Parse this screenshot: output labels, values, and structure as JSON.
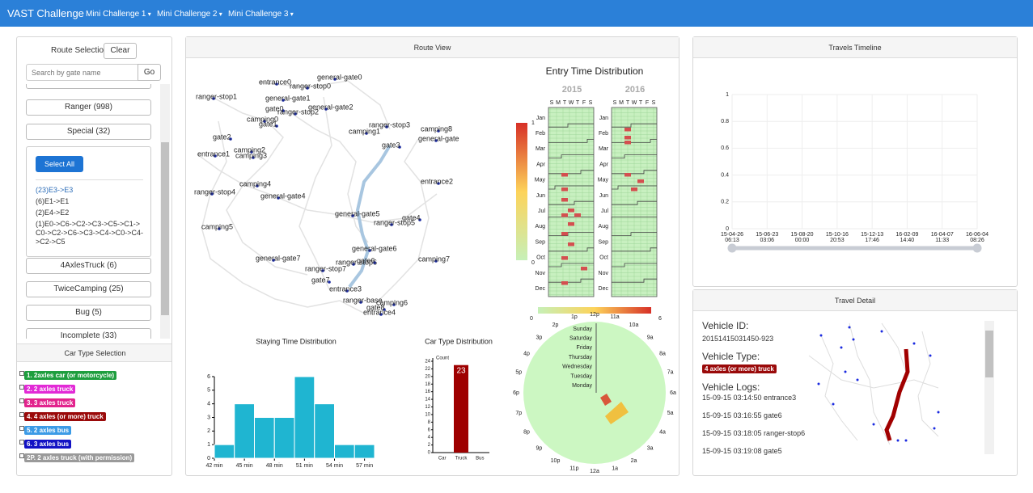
{
  "nav": {
    "brand": "VAST Challenge",
    "menus": [
      "Mini Challenge 1",
      "Mini Challenge 2",
      "Mini Challenge 3"
    ]
  },
  "route_selection": {
    "title": "Route Selection",
    "clear": "Clear",
    "search_placeholder": "Search by gate name",
    "go": "Go",
    "groups_before": [
      "Ranger (998)",
      "Special (32)"
    ],
    "select_all": "Select All",
    "routes": [
      "(23)E3->E3",
      "(6)E1->E1",
      "(2)E4->E2",
      "(1)E0->C6->C2->C3->C5->C1->C0->C2->C6->C3->C4->C0->C4->C2->C5"
    ],
    "groups_after": [
      "4AxlesTruck (6)",
      "TwiceCamping (25)",
      "Bug (5)",
      "Incomplete (33)"
    ]
  },
  "car_type_selection": {
    "title": "Car Type Selection",
    "items": [
      {
        "label": "1. 2axles car (or motorcycle)",
        "color": "#1e9e3e"
      },
      {
        "label": "2. 2 axles truck",
        "color": "#e229d6"
      },
      {
        "label": "3. 3 axles truck",
        "color": "#e2238d"
      },
      {
        "label": "4. 4 axles (or more) truck",
        "color": "#9a0a0a"
      },
      {
        "label": "5. 2 axles bus",
        "color": "#3c9be6"
      },
      {
        "label": "6. 3 axles bus",
        "color": "#1212c4"
      },
      {
        "label": "2P. 2 axles truck (with permission)",
        "color": "#9a9a9a"
      }
    ]
  },
  "route_view": {
    "title": "Route View",
    "gates": [
      "entrance0",
      "ranger-stop0",
      "general-gate0",
      "ranger-stop1",
      "general-gate1",
      "gate0",
      "ranger-stop2",
      "general-gate2",
      "camping0",
      "gate1",
      "camping1",
      "ranger-stop3",
      "camping8",
      "general-gate",
      "gate2",
      "gate3",
      "camping2",
      "entrance1",
      "camping3",
      "camping4",
      "entrance2",
      "ranger-stop4",
      "general-gate4",
      "general-gate5",
      "gate4",
      "ranger-stop5",
      "camping5",
      "general-gate6",
      "general-gate7",
      "camping7",
      "ranger-stop6",
      "gate6",
      "ranger-stop7",
      "gate7",
      "entrance3",
      "ranger-base",
      "camping6",
      "gate8",
      "entrance4"
    ]
  },
  "entry_time": {
    "title": "Entry Time Distribution",
    "years": [
      "2015",
      "2016"
    ],
    "weekdays": [
      "S",
      "M",
      "T",
      "W",
      "T",
      "F",
      "S"
    ],
    "months": [
      "Jan",
      "Feb",
      "Mar",
      "Apr",
      "May",
      "Jun",
      "Jul",
      "Aug",
      "Sep",
      "Oct",
      "Nov",
      "Dec"
    ],
    "scale": [
      1,
      0
    ]
  },
  "hour_radial": {
    "hours": [
      "12a",
      "1a",
      "2a",
      "3a",
      "4a",
      "5a",
      "6a",
      "7a",
      "8a",
      "9a",
      "10a",
      "11a",
      "12p",
      "1p",
      "2p",
      "3p",
      "4p",
      "5p",
      "6p",
      "7p",
      "8p",
      "9p",
      "10p",
      "11p"
    ],
    "weekdays": [
      "Sunday",
      "Saturday",
      "Friday",
      "Thursday",
      "Wednesday",
      "Tuesday",
      "Monday"
    ],
    "scale": [
      0,
      6
    ]
  },
  "staying_time": {
    "type": "histogram",
    "title": "Staying Time Distribution",
    "bins": [
      42,
      44,
      46,
      48,
      50,
      52,
      54,
      56,
      58
    ],
    "values": [
      1,
      4,
      3,
      3,
      6,
      4,
      1,
      1
    ],
    "color": "#1fb5d1",
    "xlim": [
      42,
      58
    ],
    "xticks": [
      {
        "value": 42,
        "label": "42 min"
      },
      {
        "value": 45,
        "label": "45 min"
      },
      {
        "value": 48,
        "label": "48 min"
      },
      {
        "value": 51,
        "label": "51 min"
      },
      {
        "value": 54,
        "label": "54 min"
      },
      {
        "value": 57,
        "label": "57 min"
      }
    ],
    "ylim": [
      0,
      6
    ],
    "yticks": [
      0,
      1,
      2,
      3,
      4,
      5,
      6
    ]
  },
  "car_type_distribution": {
    "type": "bar",
    "title": "Car Type Distribution",
    "ylabel": "Count",
    "categories": [
      "Car",
      "Truck",
      "Bus"
    ],
    "values": [
      0,
      23,
      0
    ],
    "color": "#9e0000",
    "ylim": [
      0,
      24
    ],
    "yticks": [
      0,
      2,
      4,
      6,
      8,
      10,
      12,
      14,
      16,
      18,
      20,
      22,
      24
    ]
  },
  "travels_timeline": {
    "title": "Travels Timeline",
    "type": "line",
    "ylim": [
      0,
      1
    ],
    "yticks": [
      0,
      0.2,
      0.4,
      0.6,
      0.8,
      1
    ],
    "xticks": [
      [
        "15-04-26",
        "06:13"
      ],
      [
        "15-06-23",
        "03:06"
      ],
      [
        "15-08-20",
        "00:00"
      ],
      [
        "15-10-16",
        "20:53"
      ],
      [
        "15-12-13",
        "17:46"
      ],
      [
        "16-02-09",
        "14:40"
      ],
      [
        "16-04-07",
        "11:33"
      ],
      [
        "16-06-04",
        "08:26"
      ]
    ]
  },
  "travel_detail": {
    "title": "Travel Detail",
    "id_label": "Vehicle ID:",
    "id": "20151415031450-923",
    "type_label": "Vehicle Type:",
    "type": "4 axles (or more) truck",
    "type_color": "#9a0a0a",
    "logs_label": "Vehicle Logs:",
    "logs": [
      "15-09-15 03:14:50 entrance3",
      "15-09-15 03:16:55 gate6",
      "15-09-15 03:18:05 ranger-stop6",
      "15-09-15 03:19:08 gate5"
    ]
  }
}
